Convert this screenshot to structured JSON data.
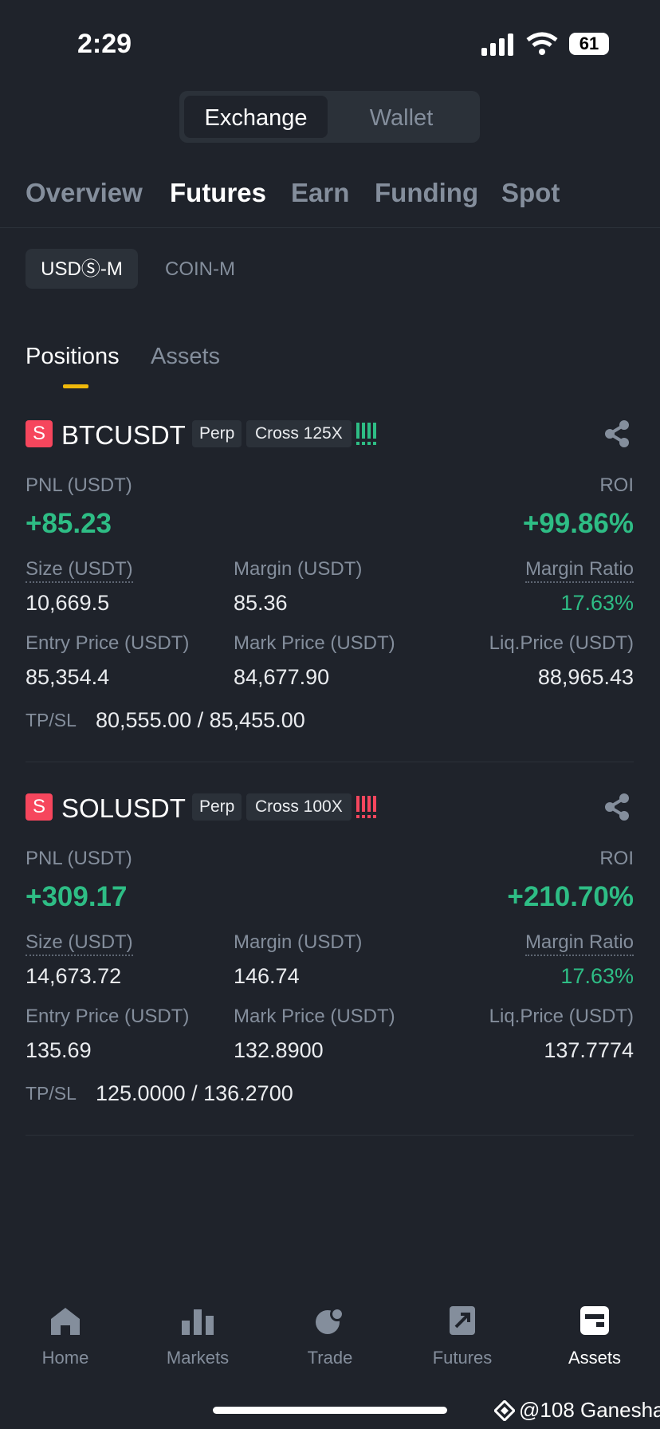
{
  "status": {
    "time": "2:29",
    "battery": "61"
  },
  "segment": [
    "Exchange",
    "Wallet"
  ],
  "tabs": [
    "Overview",
    "Futures",
    "Earn",
    "Funding",
    "Spot"
  ],
  "subtabs": [
    "USDⓈ-M",
    "COIN-M"
  ],
  "position_tabs": [
    "Positions",
    "Assets"
  ],
  "positions": [
    {
      "badge": "S",
      "symbol": "BTCUSDT",
      "type": "Perp",
      "mode": "Cross 125X",
      "pnl_label": "PNL (USDT)",
      "pnl": "+85.23",
      "roi_label": "ROI",
      "roi": "+99.86%",
      "fields": [
        {
          "label": "Size (USDT)",
          "value": "10,669.5"
        },
        {
          "label": "Margin (USDT)",
          "value": "85.36"
        },
        {
          "label": "Margin Ratio",
          "value": "17.63%"
        },
        {
          "label": "Entry Price (USDT)",
          "value": "85,354.4"
        },
        {
          "label": "Mark Price (USDT)",
          "value": "84,677.90"
        },
        {
          "label": "Liq.Price (USDT)",
          "value": "88,965.43"
        }
      ],
      "tpsl_label": "TP/SL",
      "tpsl": "80,555.00 / 85,455.00"
    },
    {
      "badge": "S",
      "symbol": "SOLUSDT",
      "type": "Perp",
      "mode": "Cross 100X",
      "pnl_label": "PNL (USDT)",
      "pnl": "+309.17",
      "roi_label": "ROI",
      "roi": "+210.70%",
      "fields": [
        {
          "label": "Size (USDT)",
          "value": "14,673.72"
        },
        {
          "label": "Margin (USDT)",
          "value": "146.74"
        },
        {
          "label": "Margin Ratio",
          "value": "17.63%"
        },
        {
          "label": "Entry Price (USDT)",
          "value": "135.69"
        },
        {
          "label": "Mark Price (USDT)",
          "value": "132.8900"
        },
        {
          "label": "Liq.Price (USDT)",
          "value": "137.7774"
        }
      ],
      "tpsl_label": "TP/SL",
      "tpsl": "125.0000 / 136.2700"
    }
  ],
  "nav": [
    "Home",
    "Markets",
    "Trade",
    "Futures",
    "Assets"
  ],
  "watermark": "@108 Ganesha"
}
